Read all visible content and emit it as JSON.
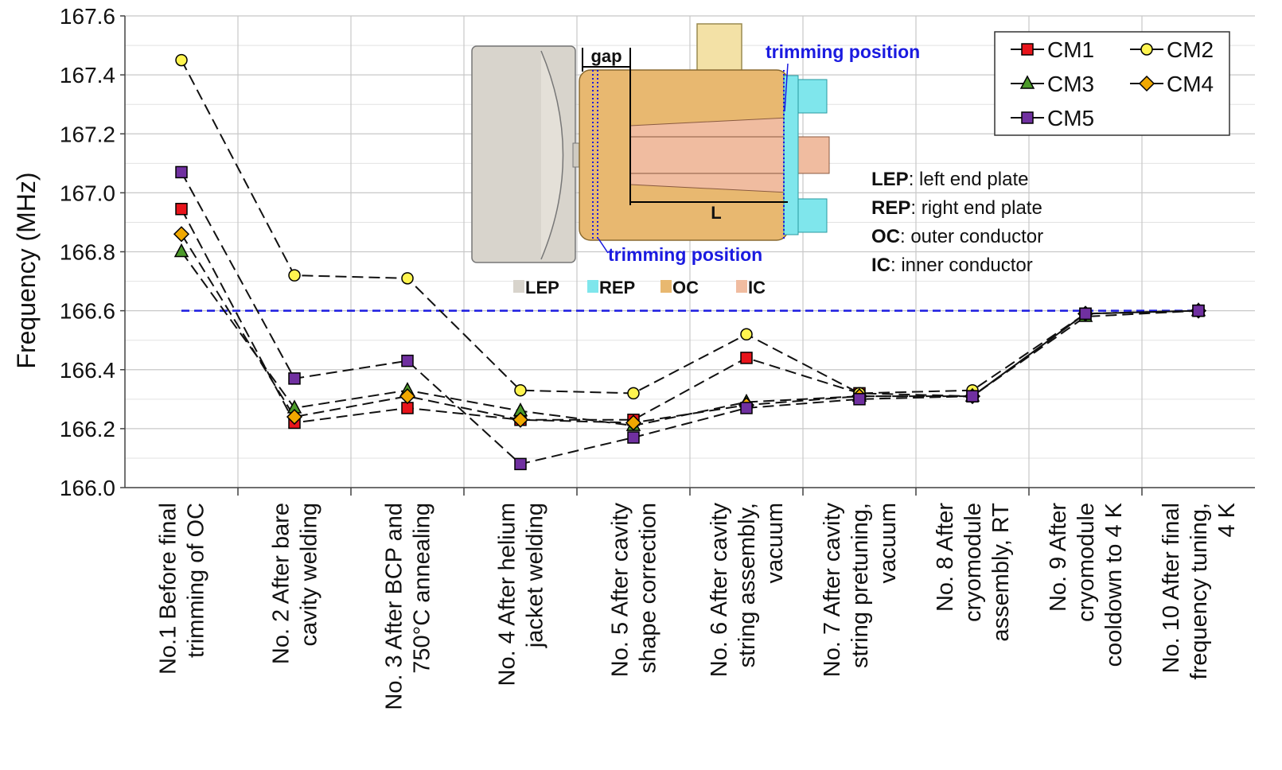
{
  "chart_data": {
    "type": "line",
    "y_label": "Frequency (MHz)",
    "categories": [
      "No.1 Before final\ntrimming of OC",
      "No. 2 After bare\ncavity welding",
      "No. 3 After BCP and\n750°C annealing",
      "No. 4 After helium\njacket welding",
      "No. 5 After cavity\nshape correction",
      "No. 6 After cavity\nstring assembly,\nvacuum",
      "No. 7 After cavity\nstring pretuning,\nvacuum",
      "No. 8 After\ncryomodule\nassembly, RT",
      "No. 9 After\ncryomodule\ncooldown to 4 K",
      "No. 10 After final\nfrequency tuning,\n4 K"
    ],
    "series": [
      {
        "name": "CM1",
        "color": "#e8141b",
        "marker": "square",
        "values": [
          166.945,
          166.22,
          166.27,
          166.23,
          166.23,
          166.44,
          166.32,
          166.31,
          166.59,
          166.6
        ]
      },
      {
        "name": "CM2",
        "color": "#fff44f",
        "marker": "circle",
        "values": [
          167.45,
          166.72,
          166.71,
          166.33,
          166.32,
          166.52,
          166.32,
          166.33,
          166.59,
          166.6
        ]
      },
      {
        "name": "CM3",
        "color": "#4c9a2a",
        "marker": "triangle",
        "values": [
          166.8,
          166.27,
          166.33,
          166.26,
          166.21,
          166.29,
          166.31,
          166.31,
          166.58,
          166.6
        ]
      },
      {
        "name": "CM4",
        "color": "#f0a800",
        "marker": "diamond",
        "values": [
          166.86,
          166.24,
          166.31,
          166.23,
          166.22,
          166.28,
          166.31,
          166.31,
          166.59,
          166.6
        ]
      },
      {
        "name": "CM5",
        "color": "#7030a0",
        "marker": "square",
        "values": [
          167.07,
          166.37,
          166.43,
          166.08,
          166.17,
          166.27,
          166.3,
          166.31,
          166.59,
          166.6
        ]
      }
    ],
    "target_line": 166.6,
    "target_color": "#1a1ae0",
    "ylim": [
      166.0,
      167.6
    ],
    "yticks": [
      {
        "value": 166,
        "label": "166.0"
      },
      166.2,
      166.4,
      166.6,
      166.8,
      {
        "value": 167,
        "label": "167.0"
      },
      167.2,
      167.4,
      167.6
    ],
    "grid": true,
    "minor_grid": true,
    "legend_position": "top-right",
    "inset": {
      "gap": "gap",
      "trimming_top": "trimming position",
      "trimming_bottom": "trimming position",
      "length": "L",
      "parts": [
        {
          "name": "LEP",
          "color": "#d8d4cc"
        },
        {
          "name": "REP",
          "color": "#7fe6ec"
        },
        {
          "name": "OC",
          "color": "#e8b870"
        },
        {
          "name": "IC",
          "color": "#f0bca0"
        }
      ],
      "definitions": [
        {
          "term": "LEP",
          "text": ": left end plate"
        },
        {
          "term": "REP",
          "text": ": right end plate"
        },
        {
          "term": "OC",
          "text": ": outer conductor"
        },
        {
          "term": "IC",
          "text": ": inner conductor"
        }
      ]
    }
  }
}
